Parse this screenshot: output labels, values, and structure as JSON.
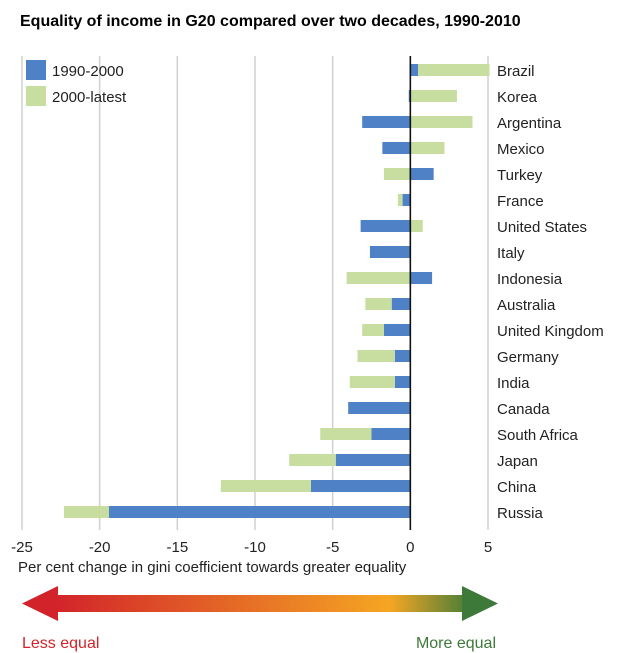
{
  "chart_data": {
    "type": "bar",
    "orientation": "horizontal",
    "stacked": true,
    "title": "Equality of income in G20 compared over two decades, 1990-2010",
    "xlabel": "Per cent change in gini coefficient towards greater equality",
    "ylabel": "",
    "xlim": [
      -25,
      5
    ],
    "xticks": [
      -25,
      -20,
      -15,
      -10,
      -5,
      0,
      5
    ],
    "grid": true,
    "legend_position": "top-left",
    "categories": [
      "Brazil",
      "Korea",
      "Argentina",
      "Mexico",
      "Turkey",
      "France",
      "United States",
      "Italy",
      "Indonesia",
      "Australia",
      "United Kingdom",
      "Germany",
      "India",
      "Canada",
      "South Africa",
      "Japan",
      "China",
      "Russia"
    ],
    "series": [
      {
        "name": "1990-2000",
        "color": "#4f81c7",
        "values": [
          0.5,
          -0.1,
          -3.1,
          -1.8,
          1.5,
          -0.5,
          -3.2,
          -2.6,
          1.4,
          -1.2,
          -1.7,
          -1.0,
          -1.0,
          -4.0,
          -2.5,
          -4.8,
          -6.4,
          -19.4
        ]
      },
      {
        "name": "2000-latest",
        "color": "#c8dea0",
        "values": [
          4.6,
          3.0,
          4.0,
          2.2,
          -1.7,
          -0.3,
          0.8,
          0.0,
          -4.1,
          -1.7,
          -1.4,
          -2.4,
          -2.9,
          0.0,
          -3.3,
          -3.0,
          -5.8,
          -2.9
        ]
      }
    ]
  },
  "arrow": {
    "left_label": "Less equal",
    "right_label": "More equal",
    "colors": {
      "left": "#d2232a",
      "mid": "#f5a623",
      "right": "#3d7a3a"
    }
  }
}
